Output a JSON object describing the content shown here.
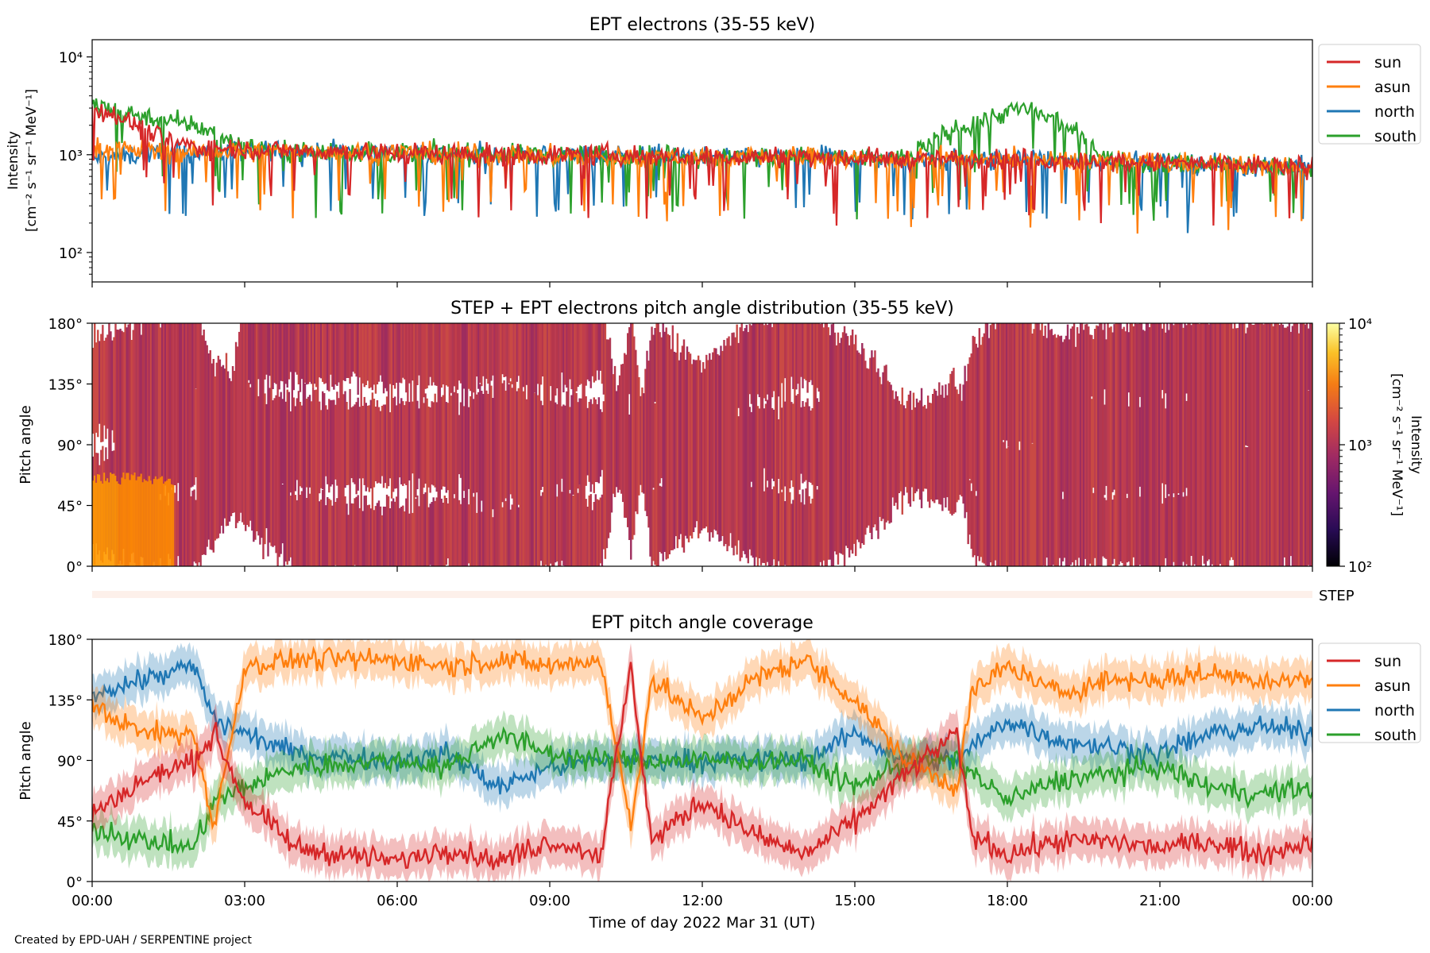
{
  "footer": "Created by EPD-UAH / SERPENTINE project",
  "colors": {
    "sun": "#d62728",
    "asun": "#ff7f0e",
    "north": "#1f77b4",
    "south": "#2ca02c",
    "pad_base": "#b83a4b",
    "pad_low": "#ff8c00"
  },
  "chart_data": [
    {
      "type": "line",
      "title": "EPT electrons (35-55 keV)",
      "ylabel_line1": "Intensity",
      "ylabel_line2": "[cm⁻² s⁻¹ sr⁻¹ MeV⁻¹]",
      "yscale": "log",
      "ylim": [
        50,
        15000
      ],
      "yticks": [
        {
          "value": 100,
          "label": "10²"
        },
        {
          "value": 1000,
          "label": "10³"
        },
        {
          "value": 10000,
          "label": "10⁴"
        }
      ],
      "xlim_hours": [
        0,
        24
      ],
      "legend": "outside-right",
      "series": [
        {
          "name": "sun",
          "color": "#d62728",
          "x": [
            0,
            0.25,
            0.5,
            1,
            1.5,
            2,
            3,
            4,
            6,
            8,
            10,
            12,
            14,
            16,
            18,
            20,
            22,
            24
          ],
          "y": [
            3000,
            2800,
            2500,
            1800,
            1400,
            1200,
            1150,
            1100,
            1050,
            1000,
            1000,
            950,
            950,
            900,
            900,
            850,
            800,
            750
          ]
        },
        {
          "name": "asun",
          "color": "#ff7f0e",
          "x": [
            0,
            0.5,
            1,
            2,
            3,
            4,
            6,
            8,
            10,
            12,
            14,
            16,
            18,
            20,
            22,
            24
          ],
          "y": [
            1200,
            1150,
            1100,
            1050,
            1100,
            1100,
            1050,
            1000,
            950,
            950,
            950,
            900,
            900,
            850,
            800,
            750
          ]
        },
        {
          "name": "north",
          "color": "#1f77b4",
          "x": [
            0,
            0.5,
            1,
            2,
            3,
            4,
            6,
            8,
            10,
            12,
            14,
            16,
            18,
            20,
            22,
            24
          ],
          "y": [
            900,
            950,
            1000,
            1050,
            1100,
            1100,
            1050,
            1000,
            1000,
            950,
            950,
            900,
            900,
            850,
            800,
            750
          ]
        },
        {
          "name": "south",
          "color": "#2ca02c",
          "x": [
            0,
            0.25,
            0.5,
            1,
            1.5,
            2,
            2.5,
            3,
            4,
            6,
            8,
            10,
            12,
            14,
            16,
            18.3,
            20,
            22,
            24
          ],
          "y": [
            3200,
            3000,
            2800,
            2500,
            2200,
            2000,
            1600,
            1200,
            1100,
            1050,
            1000,
            1000,
            950,
            950,
            900,
            3000,
            850,
            800,
            750
          ]
        }
      ]
    },
    {
      "type": "heatmap",
      "title": "STEP + EPT electrons pitch angle distribution (35-55 keV)",
      "ylabel": "Pitch angle",
      "ylim": [
        0,
        180
      ],
      "yticks": [
        "0°",
        "45°",
        "90°",
        "135°",
        "180°"
      ],
      "colorbar": {
        "label_line1": "Intensity",
        "label_line2": "[cm⁻² s⁻¹ sr⁻¹ MeV⁻¹]",
        "scale": "log",
        "range": [
          100,
          10000
        ],
        "ticks": [
          "10²",
          "10³",
          "10⁴"
        ]
      },
      "step_label": "STEP"
    },
    {
      "type": "line",
      "title": "EPT pitch angle coverage",
      "ylabel": "Pitch angle",
      "xlabel": "Time of day 2022 Mar 31 (UT)",
      "ylim": [
        0,
        180
      ],
      "yticks": [
        "0°",
        "45°",
        "90°",
        "135°",
        "180°"
      ],
      "xticks": [
        "00:00",
        "03:00",
        "06:00",
        "09:00",
        "12:00",
        "15:00",
        "18:00",
        "21:00",
        "00:00"
      ],
      "legend": "outside-right",
      "series": [
        {
          "name": "sun",
          "color": "#d62728",
          "x": [
            0,
            1,
            2,
            2.4,
            3,
            4,
            6,
            7,
            8,
            9,
            10,
            10.6,
            11,
            12,
            13,
            14,
            15,
            16,
            17,
            17.3,
            18,
            19,
            20,
            21,
            22,
            23,
            24
          ],
          "y": [
            50,
            75,
            90,
            110,
            60,
            25,
            15,
            25,
            15,
            30,
            20,
            160,
            30,
            60,
            35,
            20,
            45,
            80,
            110,
            35,
            20,
            30,
            30,
            25,
            30,
            20,
            30
          ]
        },
        {
          "name": "asun",
          "color": "#ff7f0e",
          "x": [
            0,
            1,
            2,
            2.4,
            3,
            4,
            6,
            7,
            8,
            9,
            10,
            10.6,
            11,
            12,
            13,
            14,
            15,
            16,
            17,
            17.3,
            18,
            19,
            20,
            21,
            22,
            23,
            24
          ],
          "y": [
            130,
            110,
            110,
            40,
            160,
            165,
            165,
            160,
            165,
            160,
            165,
            40,
            150,
            120,
            150,
            165,
            135,
            90,
            70,
            140,
            160,
            140,
            150,
            150,
            155,
            150,
            150
          ]
        },
        {
          "name": "north",
          "color": "#1f77b4",
          "x": [
            0,
            1,
            2,
            2.4,
            3,
            4,
            6,
            7,
            8,
            9,
            10,
            11,
            12,
            13,
            14,
            15,
            16,
            17,
            18,
            19,
            20,
            21,
            22,
            23,
            24
          ],
          "y": [
            140,
            150,
            160,
            120,
            110,
            95,
            90,
            95,
            70,
            85,
            90,
            90,
            90,
            90,
            90,
            110,
            90,
            90,
            120,
            105,
            100,
            95,
            110,
            115,
            110
          ]
        },
        {
          "name": "south",
          "color": "#2ca02c",
          "x": [
            0,
            1,
            2,
            2.4,
            3,
            4,
            6,
            7,
            8,
            9,
            10,
            11,
            12,
            13,
            14,
            15,
            16,
            17,
            18,
            19,
            20,
            21,
            22,
            23,
            24
          ],
          "y": [
            40,
            30,
            25,
            60,
            70,
            85,
            90,
            85,
            110,
            95,
            90,
            90,
            90,
            90,
            90,
            70,
            90,
            90,
            60,
            75,
            80,
            85,
            70,
            65,
            70
          ]
        }
      ]
    }
  ]
}
